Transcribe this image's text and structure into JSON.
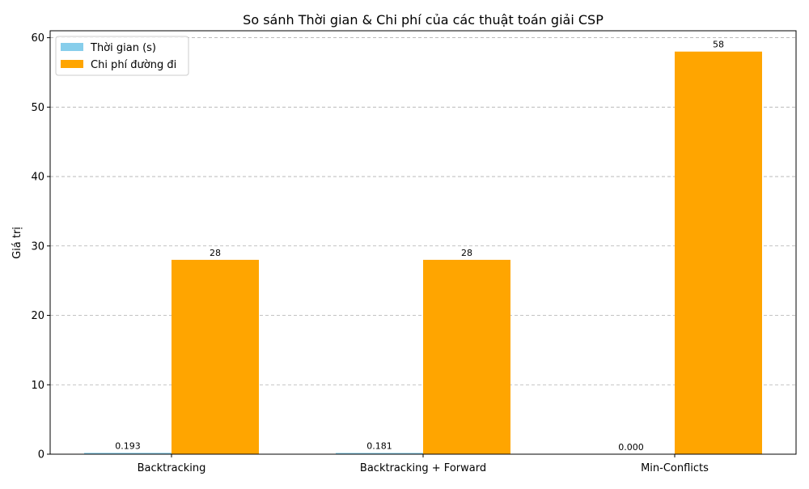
{
  "chart_data": {
    "type": "bar",
    "title": "So sánh Thời gian & Chi phí của các thuật toán giải CSP",
    "xlabel": "",
    "ylabel": "Giá trị",
    "categories": [
      "Backtracking",
      "Backtracking + Forward",
      "Min-Conflicts"
    ],
    "series": [
      {
        "name": "Thời gian (s)",
        "values": [
          0.193,
          0.181,
          0.0
        ],
        "labels": [
          "0.193",
          "0.181",
          "0.000"
        ],
        "color": "#87ceeb"
      },
      {
        "name": "Chi phí đường đi",
        "values": [
          28,
          28,
          58
        ],
        "labels": [
          "28",
          "28",
          "58"
        ],
        "color": "#ffa500"
      }
    ],
    "ylim": [
      0,
      61
    ],
    "yticks": [
      0,
      10,
      20,
      30,
      40,
      50,
      60
    ],
    "grid": "y-dashed",
    "legend_position": "top-left"
  }
}
